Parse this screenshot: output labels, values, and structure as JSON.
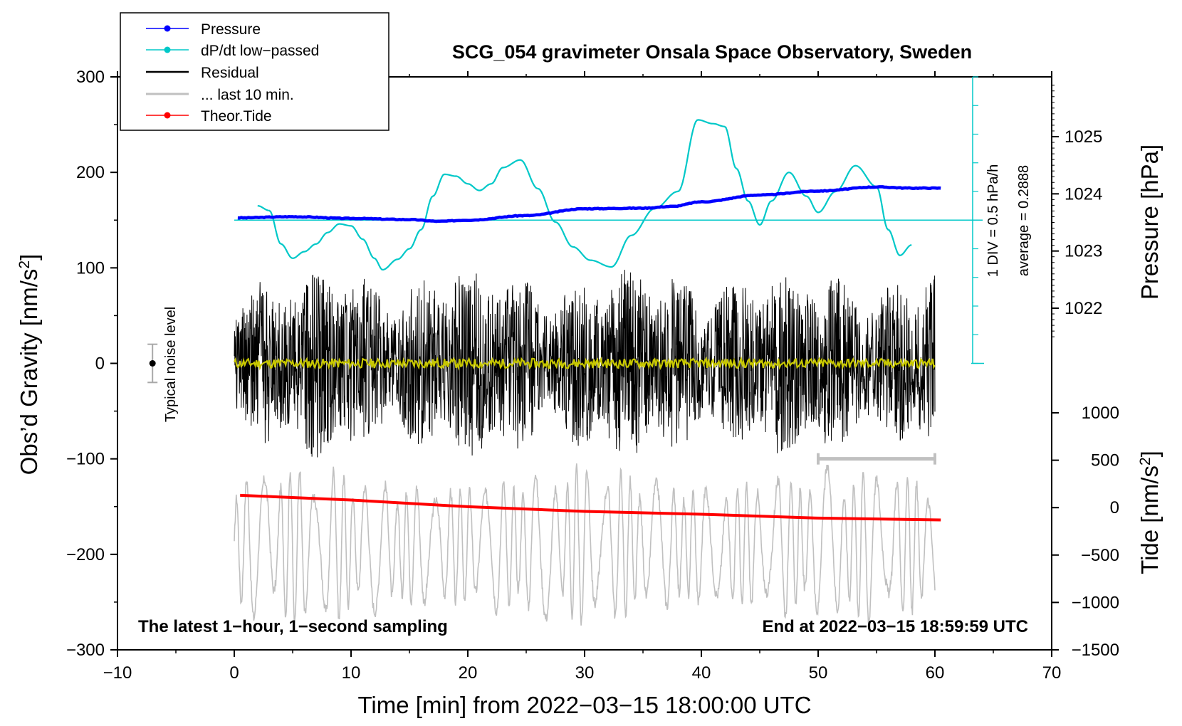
{
  "chart_data": {
    "type": "line",
    "title": "SCG_054 gravimeter Onsala Space Observatory, Sweden",
    "xlabel": "Time [min] from 2022−03−15 18:00:00 UTC",
    "ylabel_left_prefix": "Obs’d Gravity [nm/s",
    "ylabel_left_sup": "2",
    "ylabel_left_suffix": "]",
    "ylabel_right_top": "Pressure [hPa]",
    "ylabel_right_bottom_prefix": "Tide [nm/s",
    "ylabel_right_bottom_sup": "2",
    "ylabel_right_bottom_suffix": "]",
    "xlim": [
      -10,
      70
    ],
    "ylim": [
      -300,
      300
    ],
    "pressure_range": [
      1021.0,
      1026.0
    ],
    "tide_range": [
      -1500,
      1500
    ],
    "x_ticks": [
      -10,
      0,
      10,
      20,
      30,
      40,
      50,
      60,
      70
    ],
    "x_tick_labels": [
      "−10",
      "0",
      "10",
      "20",
      "30",
      "40",
      "50",
      "60",
      "70"
    ],
    "y_ticks": [
      300,
      200,
      100,
      0,
      -100,
      -200,
      -300
    ],
    "y_tick_labels": [
      "300",
      "200",
      "100",
      "0",
      "−100",
      "−200",
      "−300"
    ],
    "pressure_ticks": [
      1025,
      1024,
      1023,
      1022
    ],
    "pressure_tick_labels": [
      "1025",
      "1024",
      "1023",
      "1022"
    ],
    "tide_ticks": [
      1000,
      500,
      0,
      -500,
      -1000,
      -1500
    ],
    "tide_tick_labels": [
      "1000",
      "500",
      "0",
      "−500",
      "−1000",
      "−1500"
    ],
    "legend": {
      "position": "top-left",
      "entries": [
        {
          "label": "Pressure",
          "color": "#0000ff",
          "marker": true
        },
        {
          "label": "dP/dt low−passed",
          "color": "#00c8c8",
          "marker": true
        },
        {
          "label": "Residual",
          "color": "#000000",
          "marker": false
        },
        {
          "label": "... last 10 min.",
          "color": "#c0c0c0",
          "marker": false
        },
        {
          "label": "Theor.Tide",
          "color": "#ff0000",
          "marker": true
        }
      ]
    },
    "annotations": {
      "bottom_left": "The latest 1−hour, 1−second sampling",
      "bottom_right": "End at 2022−03−15 18:59:59 UTC",
      "noise_label": "Typical noise level",
      "dpdt_div": "1 DIV = 0.5 hPa/h",
      "dpdt_average": "average = 0.2888"
    },
    "noise_level": {
      "x": -7,
      "center": 0,
      "halfwidth": 20
    },
    "last10_bar": {
      "x_start": 50,
      "x_end": 60,
      "y": -100
    },
    "colors": {
      "pressure": "#0000ff",
      "dpdt": "#00c8c8",
      "residual": "#000000",
      "residual_smoothed": "#c8c800",
      "tide": "#ff0000",
      "gray": "#c0c0c0"
    },
    "series": [
      {
        "name": "Pressure",
        "axis": "pressure_hPa",
        "x": [
          0.3,
          5,
          10,
          15,
          17.5,
          20,
          25,
          30,
          35,
          37.5,
          40,
          45,
          50,
          55,
          58,
          60.5
        ],
        "y": [
          1023.58,
          1023.6,
          1023.57,
          1023.55,
          1023.52,
          1023.54,
          1023.62,
          1023.74,
          1023.75,
          1023.78,
          1023.86,
          1023.98,
          1024.05,
          1024.12,
          1024.1,
          1024.1
        ]
      },
      {
        "name": "dP/dt low−passed",
        "axis": "dpdt_div",
        "zero_line_y": 150,
        "div_gravity": 15,
        "x": [
          2,
          3,
          4,
          5,
          6,
          7,
          8,
          9,
          10,
          11,
          12,
          12.7,
          14,
          15,
          16,
          17,
          18,
          19,
          20,
          21,
          22,
          23,
          24.5,
          26,
          27.5,
          29,
          30.5,
          32.3,
          34,
          36,
          38,
          39.7,
          41,
          42,
          43,
          44,
          45,
          46,
          47.5,
          49,
          50,
          51.5,
          53.2,
          55,
          56,
          57,
          58
        ],
        "y": [
          165,
          160,
          125,
          110,
          117,
          125,
          137,
          146,
          144,
          130,
          110,
          98,
          109,
          120,
          140,
          175,
          198,
          196,
          188,
          181,
          188,
          205,
          213,
          183,
          148,
          122,
          108,
          101,
          134,
          162,
          180,
          255,
          251,
          248,
          204,
          170,
          145,
          170,
          200,
          175,
          158,
          180,
          207,
          185,
          140,
          113,
          124
        ]
      },
      {
        "name": "Residual",
        "axis": "gravity_nm_s2",
        "x_range": [
          0,
          60
        ],
        "envelope": {
          "min": -115,
          "max": 125
        }
      },
      {
        "name": "Residual smoothed",
        "axis": "gravity_nm_s2",
        "x_range": [
          0,
          60
        ],
        "envelope": {
          "min": -5,
          "max": 5
        }
      },
      {
        "name": "... last 10 min.",
        "axis": "tide_nm_s2",
        "x_range": [
          0,
          60
        ],
        "envelope": {
          "min": -1270,
          "max": 470
        }
      },
      {
        "name": "Theor.Tide",
        "axis": "tide_nm_s2",
        "x": [
          0.5,
          10,
          20,
          30,
          40,
          50,
          60.5
        ],
        "y": [
          130,
          80,
          10,
          -40,
          -70,
          -110,
          -130
        ]
      }
    ]
  }
}
